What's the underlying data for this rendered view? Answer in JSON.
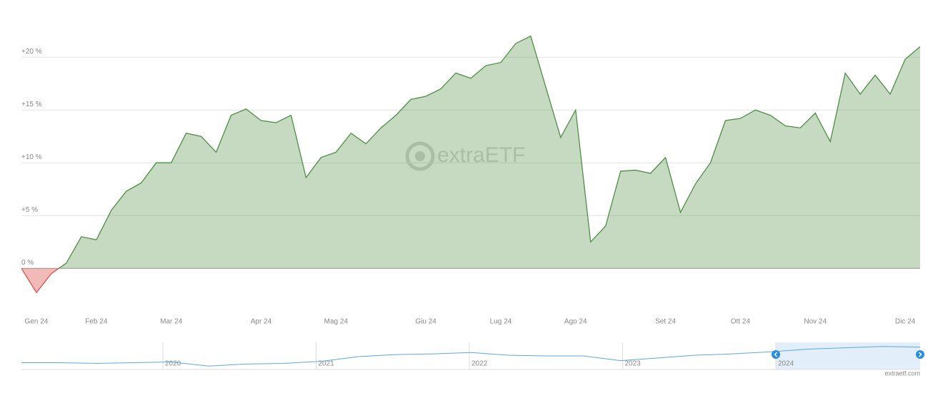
{
  "chart_data": {
    "type": "area",
    "categories": [
      null,
      "Gen 24",
      null,
      null,
      null,
      "Feb 24",
      null,
      null,
      null,
      null,
      "Mar 24",
      null,
      null,
      null,
      null,
      null,
      "Apr 24",
      null,
      null,
      null,
      null,
      "Mag 24",
      null,
      null,
      null,
      null,
      null,
      "Giu 24",
      null,
      null,
      null,
      null,
      "Lug 24",
      null,
      null,
      null,
      null,
      "Ago 24",
      null,
      null,
      null,
      null,
      null,
      "Set 24",
      null,
      null,
      null,
      null,
      "Ott 24",
      null,
      null,
      null,
      null,
      "Nov 24",
      null,
      null,
      null,
      null,
      null,
      "Dic 24",
      null
    ],
    "series": [
      {
        "color": "#4e8f44",
        "negative_color": "#d9534f",
        "values": [
          0,
          -2.3,
          -0.5,
          0.5,
          3.0,
          2.7,
          5.5,
          7.3,
          8.1,
          10.0,
          10.0,
          12.8,
          12.5,
          11.0,
          14.5,
          15.1,
          14.0,
          13.8,
          14.5,
          8.6,
          10.5,
          11.0,
          12.8,
          11.8,
          13.3,
          14.5,
          16.0,
          16.3,
          17.0,
          18.5,
          18.0,
          19.2,
          19.5,
          21.3,
          22.0,
          17.2,
          12.4,
          15.0,
          2.5,
          4.0,
          9.2,
          9.3,
          9.0,
          10.5,
          5.3,
          8.0,
          10.0,
          14.0,
          14.2,
          15.0,
          14.5,
          13.5,
          13.3,
          14.7,
          12.0,
          18.5,
          16.5,
          18.3,
          16.5,
          19.8,
          21.0
        ]
      }
    ],
    "ylim": [
      -3.5,
      24
    ],
    "yticks": [
      {
        "value": 0,
        "label": "0 %"
      },
      {
        "value": 5,
        "label": "+5 %"
      },
      {
        "value": 10,
        "label": "+10 %"
      },
      {
        "value": 15,
        "label": "+15 %"
      },
      {
        "value": 20,
        "label": "+20 %"
      }
    ],
    "grid": true,
    "watermark": "extraETF"
  },
  "navigator": {
    "labels": [
      "2020",
      "2021",
      "2022",
      "2023",
      "2024"
    ],
    "color": "#5aa9e6",
    "values": [
      10,
      10,
      9,
      10,
      11,
      5,
      8,
      9,
      12,
      19,
      22,
      23,
      25,
      21,
      20,
      20,
      13,
      17,
      21,
      23,
      26,
      30,
      32,
      34,
      33
    ],
    "ylim": [
      0,
      40
    ]
  },
  "credit": "extraetf.com"
}
